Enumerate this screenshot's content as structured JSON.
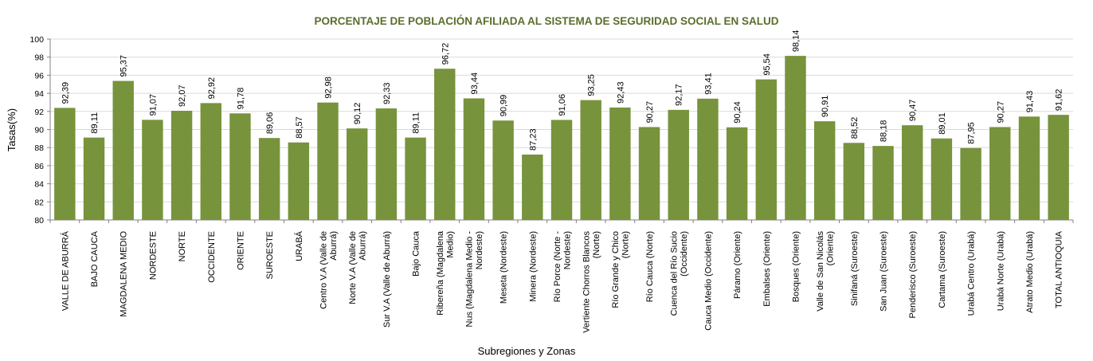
{
  "chart_data": {
    "type": "bar",
    "title": "PORCENTAJE DE POBLACIÓN AFILIADA AL SISTEMA DE SEGURIDAD SOCIAL EN SALUD",
    "xlabel": "Subregiones y Zonas",
    "ylabel": "Tasas(%)",
    "ylim": [
      80,
      100
    ],
    "yticks": [
      "80",
      "82",
      "84",
      "86",
      "88",
      "90",
      "92",
      "94",
      "96",
      "98",
      "100"
    ],
    "grid": true,
    "bar_color": "#77933c",
    "categories": [
      [
        "VALLE DE ABURRÁ"
      ],
      [
        "BAJO CAUCA"
      ],
      [
        "MAGDALENA MEDIO"
      ],
      [
        "NORDESTE"
      ],
      [
        "NORTE"
      ],
      [
        "OCCIDENTE"
      ],
      [
        "ORIENTE"
      ],
      [
        "SUROESTE"
      ],
      [
        "URABÁ"
      ],
      [
        "Centro V.A (Valle de",
        "Aburrá)"
      ],
      [
        "Norte V.A (Valle de",
        "Aburrá)"
      ],
      [
        "Sur V.A (Valle de Aburrá)"
      ],
      [
        "Bajo Cauca"
      ],
      [
        "Ribereña (Magdalena",
        "Medio)"
      ],
      [
        "Nus (Magdalena Medio -",
        "Nordeste)"
      ],
      [
        "Meseta (Nordeste)"
      ],
      [
        "Minera (Nordeste)"
      ],
      [
        "Río Porce (Norte -",
        "Nordeste)"
      ],
      [
        "Vertiente Chorros Blancos",
        "(Norte)"
      ],
      [
        "Río Grande y Chico",
        "(Norte)"
      ],
      [
        "Río Cauca (Norte)"
      ],
      [
        "Cuenca del Río Sucio",
        "(Occidente)"
      ],
      [
        "Cauca Medio (Occidente)"
      ],
      [
        "Páramo (Oriente)"
      ],
      [
        "Embalses (Oriente)"
      ],
      [
        "Bosques (Oriente)"
      ],
      [
        "Valle de San Nicolás",
        "(Oriente)"
      ],
      [
        "Sinifaná (Suroeste)"
      ],
      [
        "San Juan (Suroeste)"
      ],
      [
        "Penderisco (Suroeste)"
      ],
      [
        "Cartama (Suroeste)"
      ],
      [
        "Urabá Centro (Urabá)"
      ],
      [
        "Urabá Norte (Urabá)"
      ],
      [
        "Atrato Medio (Urabá)"
      ],
      [
        "TOTAL ANTIOQUIA"
      ]
    ],
    "values": [
      92.39,
      89.11,
      95.37,
      91.07,
      92.07,
      92.92,
      91.78,
      89.06,
      88.57,
      92.98,
      90.12,
      92.33,
      89.11,
      96.72,
      93.44,
      90.99,
      87.23,
      91.06,
      93.25,
      92.43,
      90.27,
      92.17,
      93.41,
      90.24,
      95.54,
      98.14,
      90.91,
      88.52,
      88.18,
      90.47,
      89.01,
      87.95,
      90.27,
      91.43,
      91.62
    ],
    "data_labels": [
      "92,39",
      "89,11",
      "95,37",
      "91,07",
      "92,07",
      "92,92",
      "91,78",
      "89,06",
      "88,57",
      "92,98",
      "90,12",
      "92,33",
      "89,11",
      "96,72",
      "93,44",
      "90,99",
      "87,23",
      "91,06",
      "93,25",
      "92,43",
      "90,27",
      "92,17",
      "93,41",
      "90,24",
      "95,54",
      "98,14",
      "90,91",
      "88,52",
      "88,18",
      "90,47",
      "89,01",
      "87,95",
      "90,27",
      "91,43",
      "91,62"
    ]
  }
}
